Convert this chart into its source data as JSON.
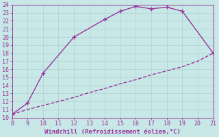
{
  "xlabel": "Windchill (Refroidissement éolien,°C)",
  "bg_color": "#c8e8e8",
  "grid_color": "#b0d0d0",
  "line_color": "#993399",
  "marker_color": "#993399",
  "curve1_x": [
    8.0,
    9.0,
    10.0,
    12.0,
    14.0,
    15.0,
    16.0,
    17.0,
    18.0,
    19.0,
    21.0
  ],
  "curve1_y": [
    10.4,
    11.8,
    15.5,
    20.0,
    22.2,
    23.2,
    23.8,
    23.5,
    23.7,
    23.2,
    18.0
  ],
  "curve2_x": [
    8.0,
    9.0,
    10.0,
    11.0,
    12.0,
    13.0,
    14.0,
    15.0,
    16.0,
    17.0,
    18.0,
    19.0,
    20.0,
    21.0
  ],
  "curve2_y": [
    10.4,
    11.0,
    11.5,
    12.0,
    12.5,
    13.1,
    13.6,
    14.2,
    14.7,
    15.3,
    15.8,
    16.3,
    17.0,
    18.0
  ],
  "marker1_x": [
    8.0,
    9.0,
    10.0,
    12.0,
    14.0,
    15.0,
    16.0,
    17.0,
    18.0,
    19.0,
    21.0
  ],
  "marker1_y": [
    10.4,
    11.8,
    15.5,
    20.0,
    22.2,
    23.2,
    23.8,
    23.5,
    23.7,
    23.2,
    18.0
  ],
  "xlim": [
    8,
    21
  ],
  "ylim": [
    10,
    24
  ],
  "xticks": [
    8,
    9,
    10,
    11,
    12,
    13,
    14,
    15,
    16,
    17,
    18,
    19,
    20,
    21
  ],
  "yticks": [
    10,
    11,
    12,
    13,
    14,
    15,
    16,
    17,
    18,
    19,
    20,
    21,
    22,
    23,
    24
  ],
  "tick_fontsize": 6,
  "xlabel_fontsize": 6.5,
  "linewidth": 1.0
}
